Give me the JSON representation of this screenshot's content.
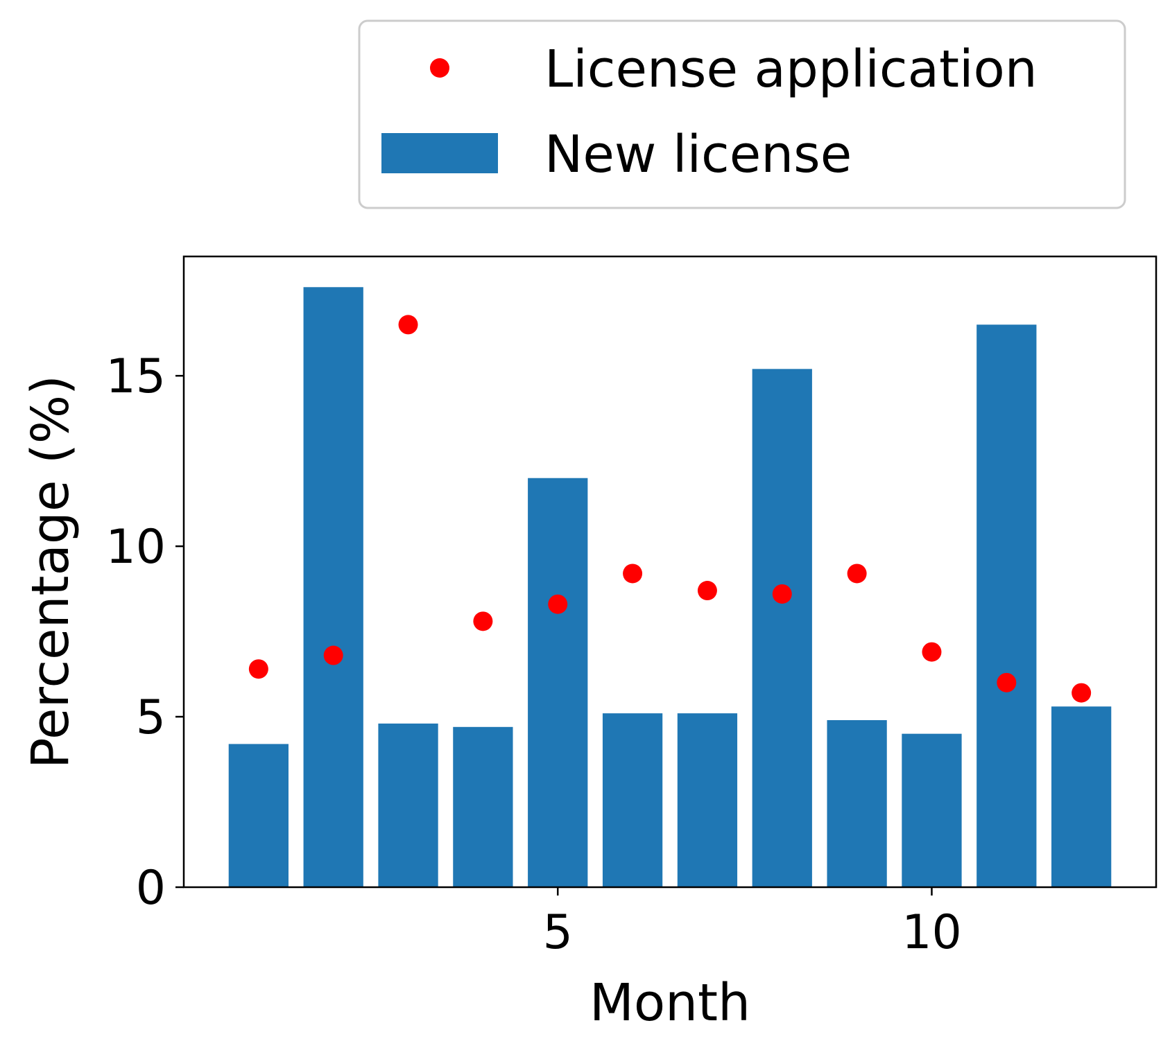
{
  "chart_data": {
    "type": "bar",
    "xlabel": "Month",
    "ylabel": "Percentage (%)",
    "xlim": [
      0,
      13.0
    ],
    "ylim": [
      0,
      18.5
    ],
    "xticks": [
      5,
      10
    ],
    "yticks": [
      0,
      5,
      10,
      15
    ],
    "grid": false,
    "legend_position": "top-right",
    "series": [
      {
        "name": "License application",
        "kind": "scatter",
        "color": "#ff0000",
        "x": [
          1,
          2,
          3,
          4,
          5,
          6,
          7,
          8,
          9,
          10,
          11,
          12
        ],
        "values": [
          6.4,
          6.8,
          16.5,
          7.8,
          8.3,
          9.2,
          8.7,
          8.6,
          9.2,
          6.9,
          6.0,
          5.7
        ]
      },
      {
        "name": "New license",
        "kind": "bar",
        "color": "#1f77b4",
        "x": [
          1,
          2,
          3,
          4,
          5,
          6,
          7,
          8,
          9,
          10,
          11,
          12
        ],
        "values": [
          4.2,
          17.6,
          4.8,
          4.7,
          12.0,
          5.1,
          5.1,
          15.2,
          4.9,
          4.5,
          16.5,
          5.3
        ]
      }
    ]
  }
}
